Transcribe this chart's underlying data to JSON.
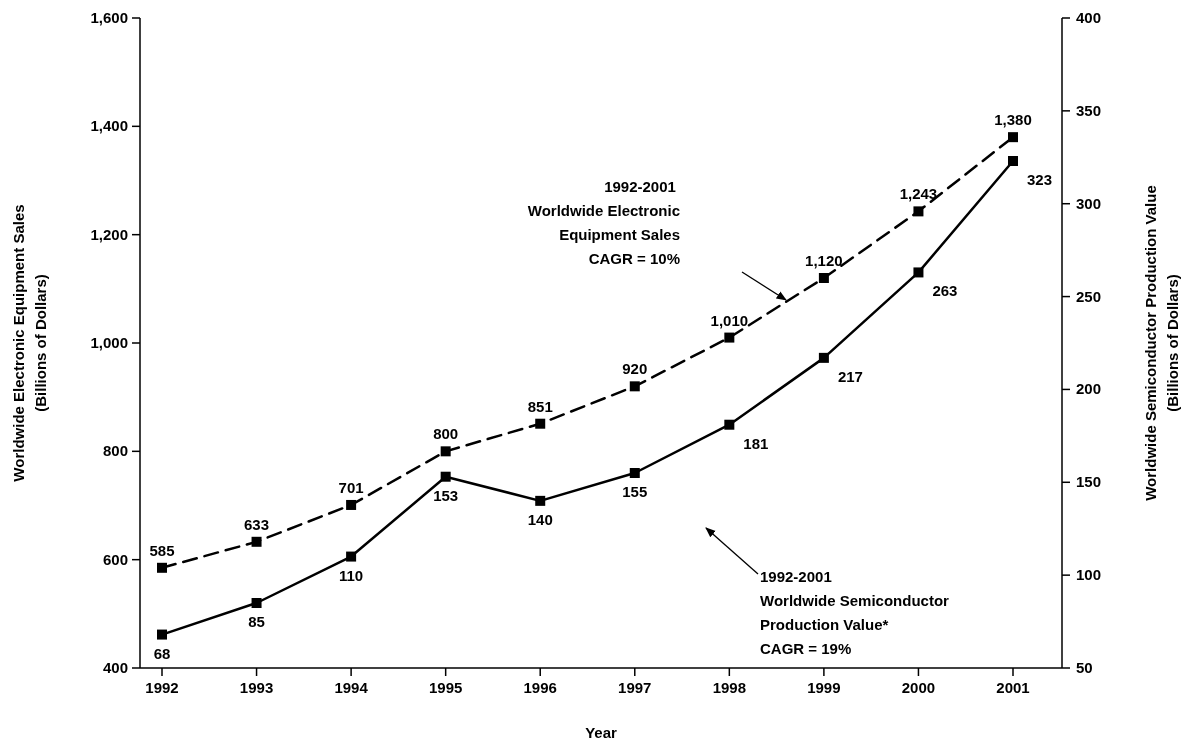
{
  "chart_data": {
    "type": "line",
    "xlabel": "Year",
    "ylabel": "Worldwide Electronic Equipment Sales\n(Billions of Dollars)",
    "y2label": "Worldwide Semiconductor  Production Value\n(Billions of Dollars)",
    "categories": [
      "1992",
      "1993",
      "1994",
      "1995",
      "1996",
      "1997",
      "1998",
      "1999",
      "2000",
      "2001"
    ],
    "ylim": [
      400,
      1600
    ],
    "yticks": [
      400,
      600,
      800,
      {
        "value": 1000,
        "label": "1,000"
      },
      {
        "value": 1200,
        "label": "1,200"
      },
      {
        "value": 1400,
        "label": "1,400"
      },
      {
        "value": 1600,
        "label": "1,600"
      }
    ],
    "y2lim": [
      50,
      400
    ],
    "y2ticks": [
      50,
      100,
      150,
      200,
      250,
      300,
      350,
      400
    ],
    "marker": "square",
    "series": [
      {
        "color": "#000000",
        "line_style": "dashed",
        "values": [
          585,
          633,
          701,
          800,
          851,
          920,
          1010,
          1120,
          1243,
          1380
        ],
        "value_labels": [
          "585",
          "633",
          "701",
          "800",
          "851",
          "920",
          "1,010",
          "1,120",
          "1,243",
          "1,380"
        ]
      },
      {
        "color": "#000000",
        "line_style": "solid",
        "axis": "y2",
        "values": [
          68,
          85,
          110,
          153,
          140,
          155,
          181,
          217,
          263,
          323
        ],
        "value_labels": [
          "68",
          "85",
          "110",
          "153",
          "140",
          "155",
          "181",
          "217",
          "263",
          "323"
        ]
      }
    ],
    "annotations": [
      "1992-2001\nWorldwide Electronic\nEquipment Sales\nCAGR = 10%",
      "1992-2001\nWorldwide Semiconductor\nProduction Value*\nCAGR = 19%"
    ]
  }
}
